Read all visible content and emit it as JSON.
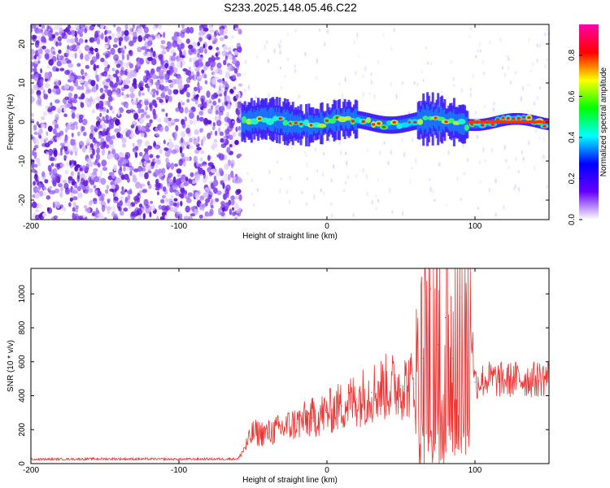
{
  "title": "S233.2025.148.05.46.C22",
  "chart_data": [
    {
      "type": "heatmap",
      "xlabel": "Height of straight line (km)",
      "ylabel": "Frequency (Hz)",
      "xlim": [
        -200,
        150
      ],
      "ylim": [
        -25,
        25
      ],
      "x_ticks": [
        "-200",
        "-100",
        "0",
        "100"
      ],
      "y_ticks": [
        "-20",
        "-10",
        "0",
        "10",
        "20"
      ],
      "colorbar": {
        "label": "Normalized spectral amplitude",
        "range": [
          0,
          0.95
        ],
        "ticks": [
          "0.0",
          "0.2",
          "0.4",
          "0.6",
          "0.8"
        ],
        "colormap": [
          "#ffffff",
          "#6600ff",
          "#0000ff",
          "#00ffff",
          "#00ff00",
          "#ffff00",
          "#ff0000",
          "#ff00aa"
        ]
      },
      "regions": [
        {
          "x_range": [
            -200,
            -58
          ],
          "description": "broadband noise",
          "amplitude": 0.1
        },
        {
          "x_range": [
            -58,
            150
          ],
          "description": "narrow band signal near 0 Hz",
          "amplitude": 0.9,
          "band_hz": [
            -5,
            5
          ]
        }
      ]
    },
    {
      "type": "line",
      "xlabel": "Height of straight line (km)",
      "ylabel": "SNR (10 * v/v)",
      "xlim": [
        -200,
        150
      ],
      "ylim": [
        0,
        1150
      ],
      "x_ticks": [
        "-200",
        "-100",
        "0",
        "100"
      ],
      "y_ticks": [
        "0",
        "200",
        "400",
        "600",
        "800",
        "1000"
      ],
      "color": "#ee3333",
      "series": [
        {
          "x": [
            -200,
            -150,
            -100,
            -60,
            -55,
            -50,
            -40,
            -30,
            -20,
            -10,
            0,
            10,
            20,
            30,
            40,
            50,
            60,
            65,
            70,
            75,
            80,
            85,
            90,
            95,
            100,
            110,
            120,
            130,
            140,
            150
          ],
          "values": [
            25,
            28,
            26,
            28,
            100,
            180,
            180,
            210,
            240,
            270,
            300,
            340,
            380,
            420,
            450,
            460,
            470,
            620,
            1030,
            700,
            860,
            620,
            980,
            1150,
            480,
            500,
            490,
            500,
            495,
            510
          ]
        }
      ]
    }
  ]
}
